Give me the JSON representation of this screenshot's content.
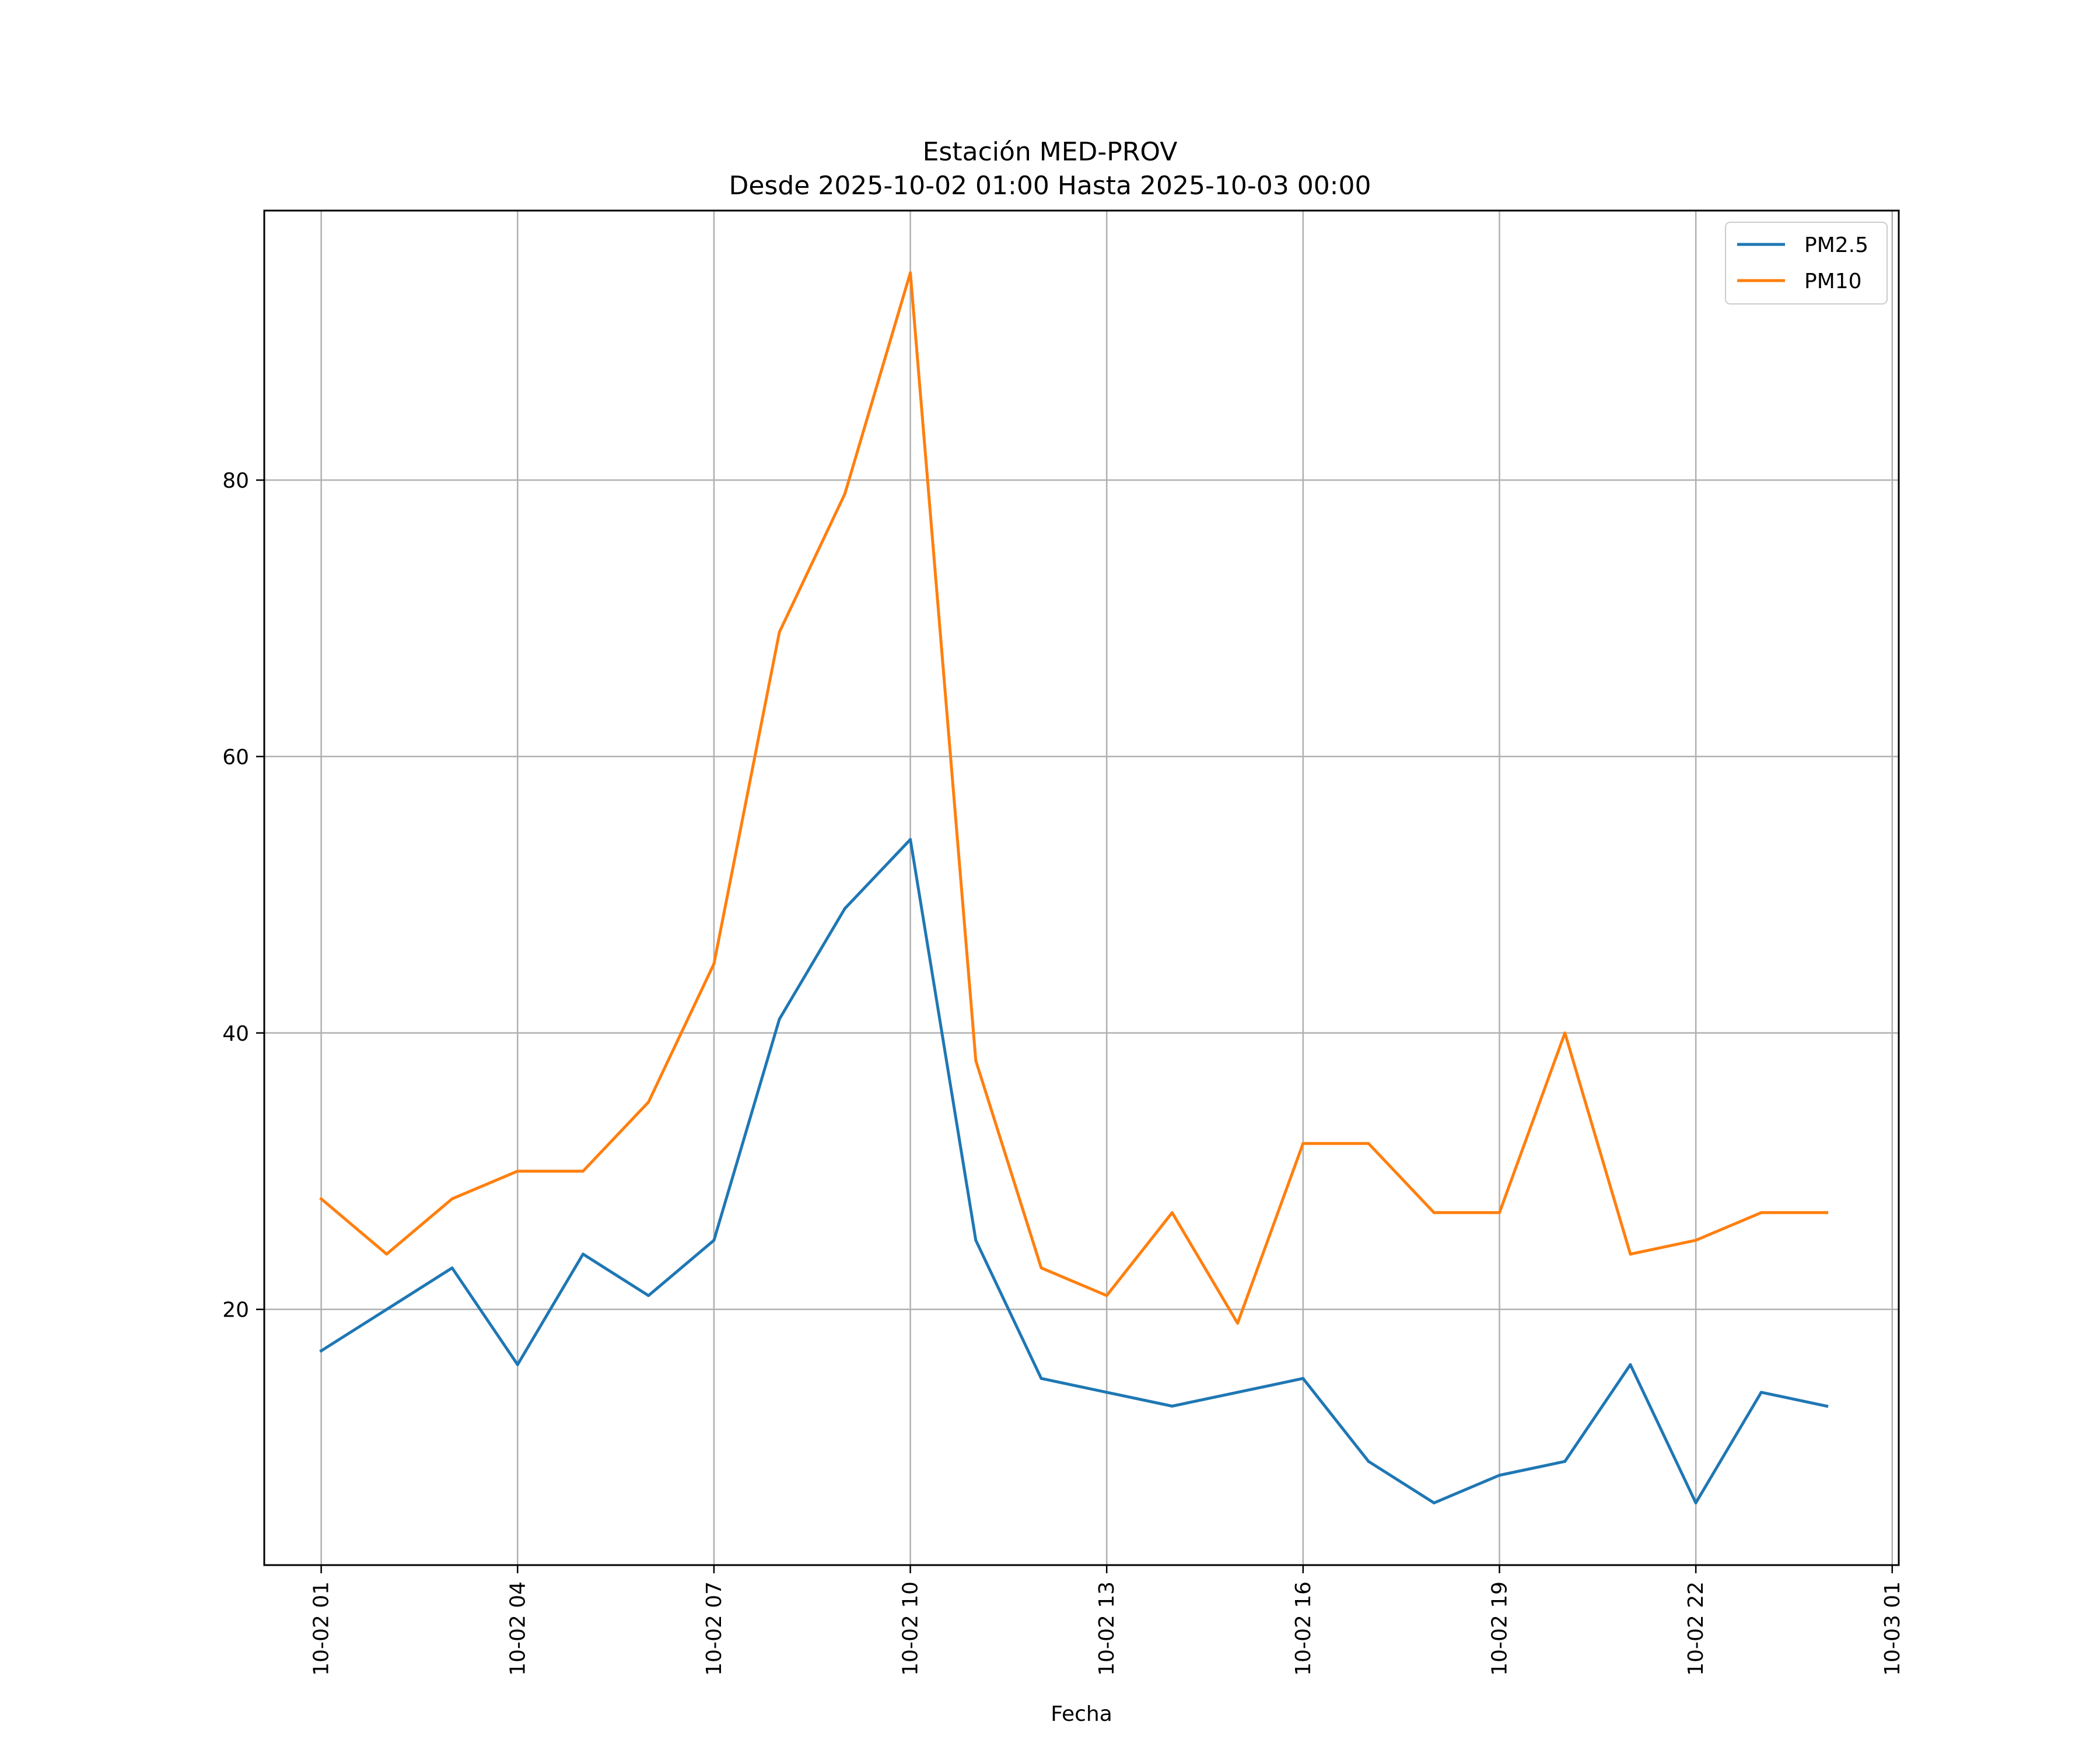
{
  "chart_data": {
    "type": "line",
    "title": "Estación MED-PROV",
    "subtitle": "Desde 2025-10-02 01:00 Hasta 2025-10-03 00:00",
    "xlabel": "Fecha",
    "ylabel": "",
    "x": [
      "10-02 01:00",
      "10-02 02:00",
      "10-02 03:00",
      "10-02 04:00",
      "10-02 05:00",
      "10-02 06:00",
      "10-02 07:00",
      "10-02 08:00",
      "10-02 09:00",
      "10-02 10:00",
      "10-02 11:00",
      "10-02 12:00",
      "10-02 13:00",
      "10-02 14:00",
      "10-02 15:00",
      "10-02 16:00",
      "10-02 17:00",
      "10-02 18:00",
      "10-02 19:00",
      "10-02 20:00",
      "10-02 21:00",
      "10-02 22:00",
      "10-02 23:00",
      "10-03 00:00"
    ],
    "x_hours": [
      1,
      2,
      3,
      4,
      5,
      6,
      7,
      8,
      9,
      10,
      11,
      12,
      13,
      14,
      15,
      16,
      17,
      18,
      19,
      20,
      21,
      22,
      23,
      24
    ],
    "xlim": [
      0.13,
      25.1
    ],
    "ylim": [
      1.5,
      99.5
    ],
    "xticks": [
      {
        "hour": 1,
        "label": "10-02 01"
      },
      {
        "hour": 4,
        "label": "10-02 04"
      },
      {
        "hour": 7,
        "label": "10-02 07"
      },
      {
        "hour": 10,
        "label": "10-02 10"
      },
      {
        "hour": 13,
        "label": "10-02 13"
      },
      {
        "hour": 16,
        "label": "10-02 16"
      },
      {
        "hour": 19,
        "label": "10-02 19"
      },
      {
        "hour": 22,
        "label": "10-02 22"
      },
      {
        "hour": 25,
        "label": "10-03 01"
      }
    ],
    "yticks": [
      {
        "value": 20,
        "label": "20"
      },
      {
        "value": 40,
        "label": "40"
      },
      {
        "value": 60,
        "label": "60"
      },
      {
        "value": 80,
        "label": "80"
      }
    ],
    "grid": true,
    "legend_position": "top-right",
    "series": [
      {
        "name": "PM2.5",
        "color": "#1f77b4",
        "values": [
          17,
          20,
          23,
          16,
          24,
          21,
          25,
          41,
          49,
          54,
          25,
          15,
          14,
          13,
          14,
          15,
          9,
          6,
          8,
          9,
          16,
          6,
          14,
          13
        ]
      },
      {
        "name": "PM10",
        "color": "#ff7f0e",
        "values": [
          28,
          24,
          28,
          30,
          30,
          35,
          45,
          69,
          79,
          95,
          38,
          23,
          21,
          27,
          19,
          32,
          32,
          27,
          27,
          40,
          24,
          25,
          27,
          27
        ]
      }
    ]
  }
}
